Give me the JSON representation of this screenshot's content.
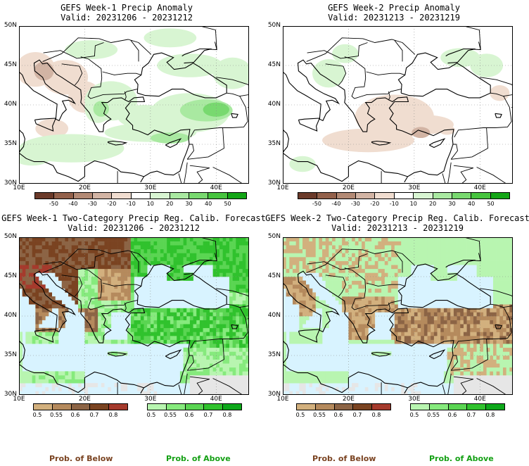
{
  "panels": [
    {
      "title": "GEFS Week-1 Precip Anomaly",
      "valid": "Valid: 20231206 - 20231212"
    },
    {
      "title": "GEFS Week-2 Precip Anomaly",
      "valid": "Valid: 20231213 - 20231219"
    },
    {
      "title": "GEFS Week-1 Two-Category Precip Reg. Calib. Forecast",
      "valid": "Valid: 20231206 - 20231212"
    },
    {
      "title": "GEFS Week-2 Two-Category Precip Reg. Calib. Forecast",
      "valid": "Valid: 20231213 - 20231219"
    }
  ],
  "lat_labels": [
    "50N",
    "45N",
    "40N",
    "35N",
    "30N"
  ],
  "lon_labels": [
    "10E",
    "20E",
    "30E",
    "40E"
  ],
  "anomaly_colorbar": {
    "ticks": [
      "-50",
      "-40",
      "-30",
      "-20",
      "-10",
      "10",
      "20",
      "30",
      "40",
      "50"
    ],
    "colors": [
      "#6b3a2a",
      "#93614b",
      "#b38a75",
      "#d2b4a4",
      "#f0ddd0",
      "#ffffff",
      "#d8f5d2",
      "#a9e9a1",
      "#78d96f",
      "#46c43e",
      "#13a616"
    ]
  },
  "below_colorbar": {
    "ticks": [
      "0.5",
      "0.55",
      "0.6",
      "0.7",
      "0.8"
    ],
    "colors": [
      "#d2b07e",
      "#b58a5d",
      "#8c6445",
      "#7a4321",
      "#a53a2c"
    ]
  },
  "above_colorbar": {
    "ticks": [
      "0.5",
      "0.55",
      "0.6",
      "0.7",
      "0.8"
    ],
    "colors": [
      "#b8f5b0",
      "#86ea7d",
      "#5ad552",
      "#30c22d",
      "#0da81a"
    ]
  },
  "legend": {
    "below": "Prob. of Below",
    "above": "Prob. of Above"
  },
  "colors": {
    "below_label": "#7a4321",
    "above_label": "#14a014",
    "sea": "#d8f3ff",
    "no_data": "#e6e6e6"
  }
}
